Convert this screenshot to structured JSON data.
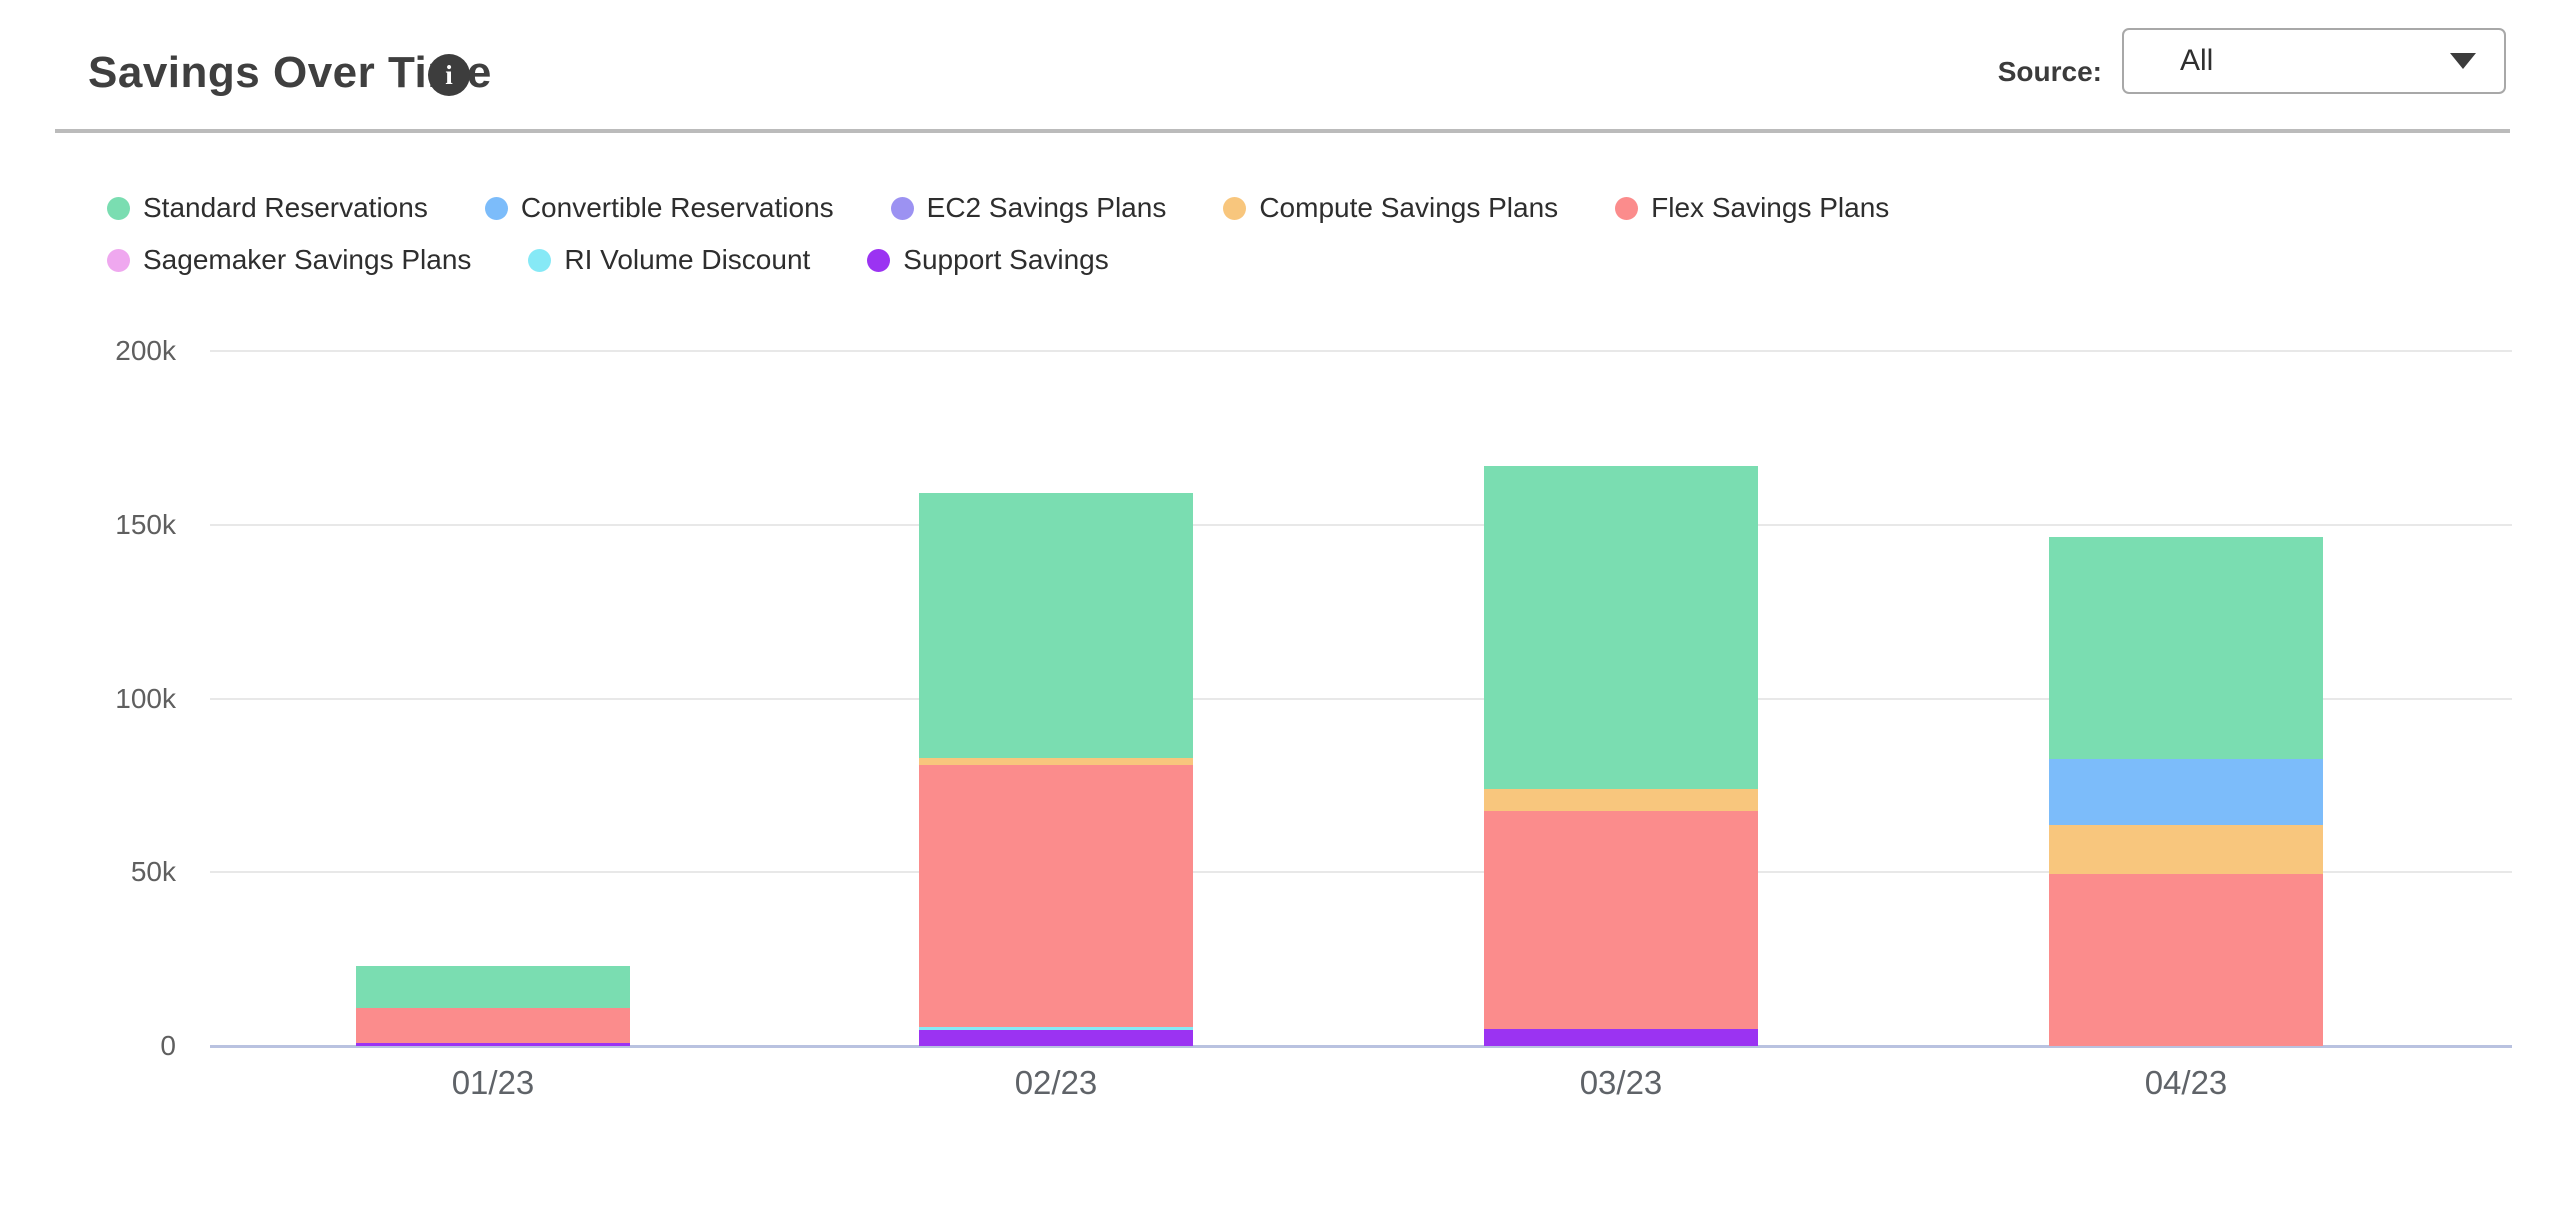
{
  "header": {
    "title": "Savings Over Time",
    "source_label": "Source:",
    "source_value": "All",
    "info_icon_glyph": "i"
  },
  "chart_data": {
    "type": "bar",
    "stacked": true,
    "title": "Savings Over Time",
    "categories": [
      "01/23",
      "02/23",
      "03/23",
      "04/23"
    ],
    "series": [
      {
        "name": "Standard Reservations",
        "color": "#7ADDB1",
        "values": [
          12000,
          76000,
          93000,
          64000
        ]
      },
      {
        "name": "Convertible Reservations",
        "color": "#7CBCFA",
        "values": [
          0,
          0,
          0,
          19000
        ]
      },
      {
        "name": "EC2 Savings Plans",
        "color": "#9C92F2",
        "values": [
          0,
          0,
          0,
          0
        ]
      },
      {
        "name": "Compute Savings Plans",
        "color": "#F8C67D",
        "values": [
          0,
          2000,
          6500,
          14000
        ]
      },
      {
        "name": "Flex Savings Plans",
        "color": "#FB8C8C",
        "values": [
          10000,
          75500,
          62500,
          49500
        ]
      },
      {
        "name": "Sagemaker Savings Plans",
        "color": "#EFA8EF",
        "values": [
          0,
          0,
          0,
          0
        ]
      },
      {
        "name": "RI Volume Discount",
        "color": "#86E9F6",
        "values": [
          0,
          1000,
          0,
          0
        ]
      },
      {
        "name": "Support Savings",
        "color": "#9B33F2",
        "values": [
          1000,
          4500,
          5000,
          0
        ]
      }
    ],
    "stack_order_bottom_up": [
      "Support Savings",
      "RI Volume Discount",
      "Sagemaker Savings Plans",
      "Flex Savings Plans",
      "Compute Savings Plans",
      "EC2 Savings Plans",
      "Convertible Reservations",
      "Standard Reservations"
    ],
    "bar_totals": [
      23000,
      159000,
      167000,
      146500
    ],
    "xlabel": "",
    "ylabel": "",
    "ylim": [
      0,
      200000
    ],
    "ytick_values": [
      0,
      50000,
      100000,
      150000,
      200000
    ],
    "ytick_labels": [
      "0",
      "50k",
      "100k",
      "150k",
      "200k"
    ],
    "grid": true,
    "legend_position": "top-left",
    "gridline_color": "#E8E8E8",
    "axis_line_color": "#B9C2E0"
  }
}
